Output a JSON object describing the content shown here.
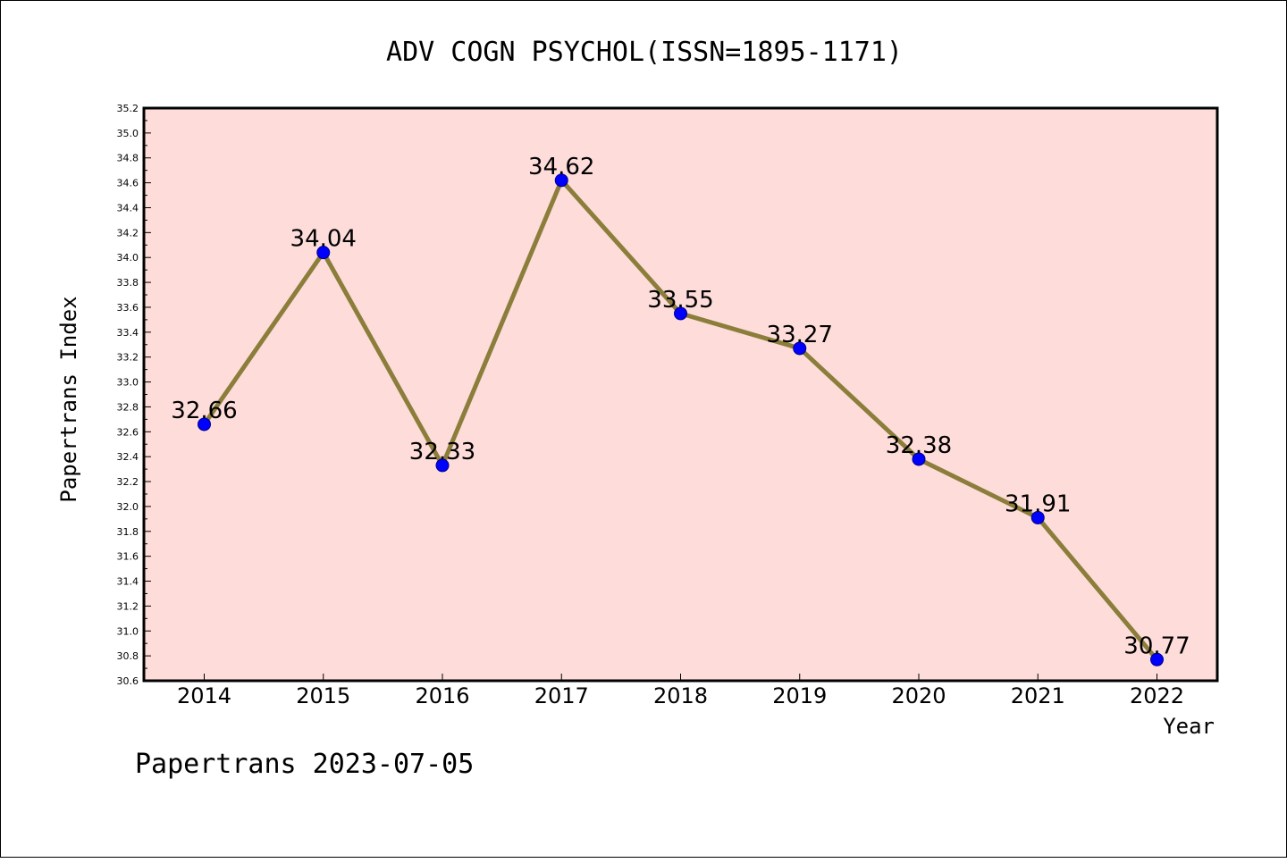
{
  "chart_data": {
    "type": "line",
    "title": "ADV COGN PSYCHOL(ISSN=1895-1171)",
    "xlabel": "Year",
    "ylabel": "Papertrans Index",
    "categories": [
      "2014",
      "2015",
      "2016",
      "2017",
      "2018",
      "2019",
      "2020",
      "2021",
      "2022"
    ],
    "series": [
      {
        "values": [
          32.66,
          34.04,
          32.33,
          34.62,
          33.55,
          33.27,
          32.38,
          31.91,
          30.77
        ],
        "labels": [
          "32.66",
          "34.04",
          "32.33",
          "34.62",
          "33.55",
          "33.27",
          "32.38",
          "31.91",
          "30.77"
        ]
      }
    ],
    "ylim": [
      30.6,
      35.2
    ],
    "yticks": [
      "30.6",
      "30.8",
      "31.0",
      "31.2",
      "31.4",
      "31.6",
      "31.8",
      "32.0",
      "32.2",
      "32.4",
      "32.6",
      "32.8",
      "33.0",
      "33.2",
      "33.4",
      "33.6",
      "33.8",
      "34.0",
      "34.2",
      "34.4",
      "34.6",
      "34.8",
      "35.0",
      "35.2"
    ],
    "grid": false,
    "colors": {
      "plot_background": "#FDDCDA",
      "line": "#8B7D3A",
      "marker_fill": "#0000FF",
      "marker_edge": "#00008B"
    }
  },
  "footer": "Papertrans 2023-07-05"
}
